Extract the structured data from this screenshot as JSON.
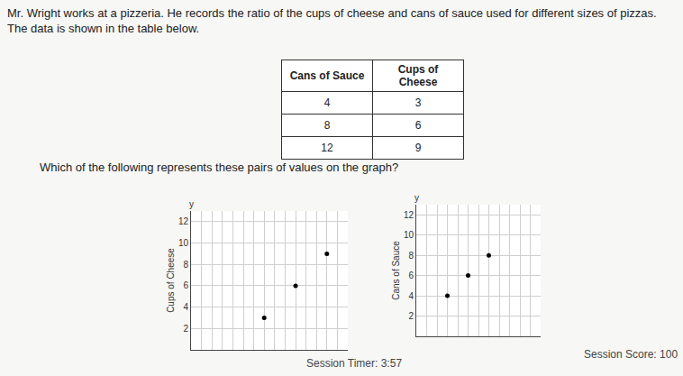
{
  "intro": "Mr. Wright works at a pizzeria. He records the ratio of the cups of cheese and cans of sauce used for different sizes of pizzas. The data is shown in the table below.",
  "table": {
    "header": [
      "Cans of Sauce",
      "Cups of Cheese"
    ],
    "rows": [
      [
        "4",
        "3"
      ],
      [
        "8",
        "6"
      ],
      [
        "12",
        "9"
      ]
    ]
  },
  "question": "Which of the following represents these pairs of values on the graph?",
  "chart_data": [
    {
      "type": "scatter",
      "y_label": "Cups of Cheese",
      "axis_letter": "y",
      "x": [
        7,
        10,
        13
      ],
      "values": [
        3,
        6,
        9
      ],
      "color": "#000000",
      "marker": "circle",
      "xlim": [
        0,
        15
      ],
      "xticks": [
        0,
        1,
        2,
        3,
        4,
        5,
        6,
        7,
        8,
        9,
        10,
        11,
        12,
        13,
        14,
        15
      ],
      "ylim": [
        0,
        13
      ],
      "yticks": [
        2,
        4,
        6,
        8,
        10,
        12
      ],
      "grid": true,
      "tick_labels": "y"
    },
    {
      "type": "scatter",
      "y_label": "Cans of Sauce",
      "axis_letter": "y",
      "x": [
        3,
        5,
        7
      ],
      "values": [
        4,
        6,
        8
      ],
      "color": "#000000",
      "marker": "circle",
      "xlim": [
        0,
        12
      ],
      "xticks": [
        0,
        1,
        2,
        3,
        4,
        5,
        6,
        7,
        8,
        9,
        10,
        11,
        12
      ],
      "ylim": [
        0,
        13
      ],
      "yticks": [
        2,
        4,
        6,
        8,
        10,
        12
      ],
      "grid": true,
      "tick_labels": "y"
    }
  ],
  "footer": {
    "timer": "Session Timer: 3:57",
    "score": "Session Score: 100"
  }
}
